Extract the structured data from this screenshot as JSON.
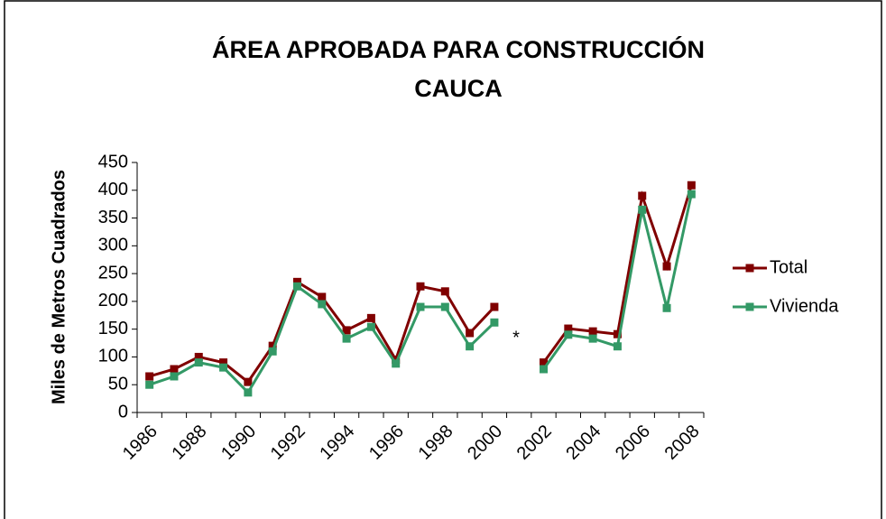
{
  "chart_data": {
    "type": "line",
    "title": [
      "ÁREA APROBADA PARA CONSTRUCCIÓN",
      "CAUCA"
    ],
    "y_label": "Miles de Metros Cuadrados",
    "annotation": "*",
    "categories": [
      "1986",
      null,
      "1988",
      null,
      "1990",
      null,
      "1992",
      null,
      "1994",
      null,
      "1996",
      null,
      "1998",
      null,
      "2000",
      null,
      "2002",
      null,
      "2004",
      null,
      "2006",
      null,
      "2008"
    ],
    "series": [
      {
        "name": "Total",
        "color": "#800000",
        "values": [
          65,
          78,
          100,
          90,
          55,
          120,
          235,
          208,
          148,
          170,
          95,
          227,
          218,
          143,
          190,
          null,
          90,
          151,
          146,
          141,
          390,
          263,
          409
        ]
      },
      {
        "name": "Vivienda",
        "color": "#339966",
        "values": [
          50,
          65,
          90,
          81,
          36,
          110,
          227,
          195,
          133,
          154,
          88,
          190,
          190,
          119,
          162,
          null,
          78,
          140,
          133,
          119,
          365,
          188,
          393
        ]
      }
    ],
    "ylim": [
      0,
      450
    ],
    "yticks": [
      0,
      50,
      100,
      150,
      200,
      250,
      300,
      350,
      400,
      450
    ],
    "legend": "right"
  }
}
